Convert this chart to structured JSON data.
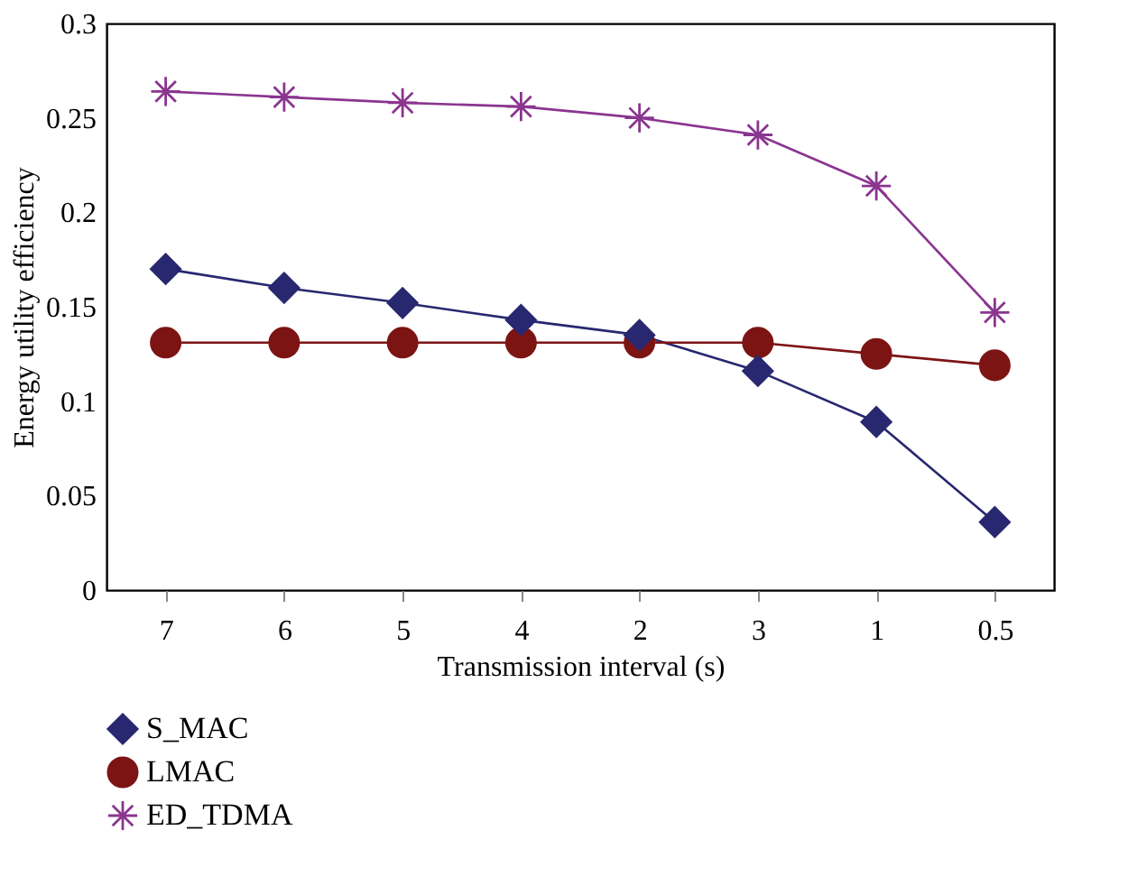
{
  "chart_data": {
    "type": "line",
    "xlabel": "Transmission interval (s)",
    "ylabel": "Energy utility efficiency",
    "categories": [
      "7",
      "6",
      "5",
      "4",
      "2",
      "3",
      "1",
      "0.5"
    ],
    "series": [
      {
        "name": "S_MAC",
        "color": "#27286f",
        "marker": "diamond",
        "values": [
          0.17,
          0.16,
          0.152,
          0.143,
          0.135,
          0.116,
          0.089,
          0.036
        ]
      },
      {
        "name": "LMAC",
        "color": "#7d1414",
        "marker": "circle",
        "values": [
          0.131,
          0.131,
          0.131,
          0.131,
          0.131,
          0.131,
          0.125,
          0.119
        ]
      },
      {
        "name": "ED_TDMA",
        "color": "#8a3590",
        "marker": "cross",
        "values": [
          0.264,
          0.261,
          0.258,
          0.256,
          0.25,
          0.241,
          0.214,
          0.147
        ]
      }
    ],
    "ylim": [
      0,
      0.3
    ],
    "yticks": [
      0,
      0.05,
      0.1,
      0.15,
      0.2,
      0.25,
      0.3
    ],
    "grid": false,
    "legend": "bottom left"
  }
}
